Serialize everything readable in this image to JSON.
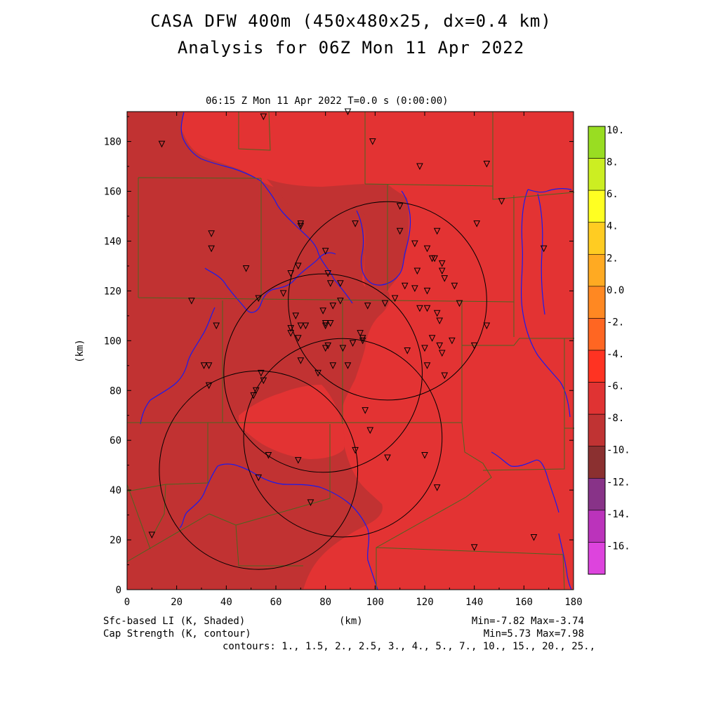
{
  "title_line1": "CASA DFW 400m (450x480x25, dx=0.4 km)",
  "title_line2": "Analysis for 06Z Mon 11 Apr 2022",
  "subtitle": "06:15 Z Mon 11 Apr 2022    T=0.0 s (0:00:00)",
  "x_axis": {
    "label": "(km)",
    "ticks": [
      "0",
      "20",
      "40",
      "60",
      "80",
      "100",
      "120",
      "140",
      "160",
      "180"
    ]
  },
  "y_axis": {
    "label": "(km)",
    "ticks": [
      "0",
      "20",
      "40",
      "60",
      "80",
      "100",
      "120",
      "140",
      "160",
      "180"
    ]
  },
  "colorbar": {
    "labels": [
      "10.",
      "8.",
      "6.",
      "4.",
      "2.",
      "0.0",
      "-2.",
      "-4.",
      "-6.",
      "-8.",
      "-10.",
      "-12.",
      "-14.",
      "-16."
    ],
    "colors": [
      "#99dd22",
      "#ccee22",
      "#ffff22",
      "#ffcc22",
      "#ffaa22",
      "#ff8822",
      "#ff6622",
      "#ff3322",
      "#e03333",
      "#c03333",
      "#8b3030",
      "#883388",
      "#bb33bb",
      "#dd44dd"
    ]
  },
  "field_colors": {
    "main": "#e33333",
    "darker": "#c13232",
    "county_line": "#4a6620",
    "river": "#1a1aee"
  },
  "footer": {
    "left1": "Sfc-based LI (K, Shaded)",
    "left2": "Cap Strength (K, contour)",
    "center": "(km)",
    "right1": "Min=-7.82 Max=-3.74",
    "right2": "Min=5.73 Max=7.98",
    "contours": "contours: 1., 1.5, 2., 2.5, 3., 4., 5., 7., 10., 15., 20., 25.,"
  },
  "radar_rings": [
    {
      "cx_km": 53,
      "cy_km": 48
    },
    {
      "cx_km": 79,
      "cy_km": 87
    },
    {
      "cx_km": 87,
      "cy_km": 61
    },
    {
      "cx_km": 105,
      "cy_km": 116
    }
  ],
  "stations_km": [
    [
      14,
      179
    ],
    [
      55,
      190
    ],
    [
      89,
      192
    ],
    [
      99,
      180
    ],
    [
      118,
      170
    ],
    [
      145,
      171
    ],
    [
      151,
      156
    ],
    [
      168,
      137
    ],
    [
      34,
      143
    ],
    [
      34,
      137
    ],
    [
      48,
      129
    ],
    [
      70,
      147
    ],
    [
      70,
      146
    ],
    [
      80,
      136
    ],
    [
      81,
      127
    ],
    [
      86,
      123
    ],
    [
      82,
      123
    ],
    [
      69,
      130
    ],
    [
      66,
      127
    ],
    [
      92,
      147
    ],
    [
      110,
      154
    ],
    [
      110,
      144
    ],
    [
      116,
      139
    ],
    [
      121,
      137
    ],
    [
      125,
      144
    ],
    [
      123,
      133
    ],
    [
      124,
      133
    ],
    [
      127,
      131
    ],
    [
      127,
      128
    ],
    [
      128,
      125
    ],
    [
      132,
      122
    ],
    [
      134,
      115
    ],
    [
      141,
      147
    ],
    [
      117,
      128
    ],
    [
      121,
      120
    ],
    [
      116,
      121
    ],
    [
      112,
      122
    ],
    [
      118,
      113
    ],
    [
      121,
      113
    ],
    [
      125,
      111
    ],
    [
      126,
      108
    ],
    [
      108,
      117
    ],
    [
      104,
      115
    ],
    [
      26,
      116
    ],
    [
      36,
      106
    ],
    [
      53,
      117
    ],
    [
      63,
      119
    ],
    [
      68,
      110
    ],
    [
      70,
      106
    ],
    [
      66,
      105
    ],
    [
      72,
      106
    ],
    [
      66,
      103
    ],
    [
      69,
      101
    ],
    [
      79,
      112
    ],
    [
      82,
      107
    ],
    [
      80,
      107
    ],
    [
      80,
      106
    ],
    [
      86,
      116
    ],
    [
      83,
      114
    ],
    [
      94,
      103
    ],
    [
      95,
      101
    ],
    [
      95,
      100
    ],
    [
      91,
      99
    ],
    [
      87,
      97
    ],
    [
      81,
      98
    ],
    [
      80,
      97
    ],
    [
      83,
      90
    ],
    [
      97,
      114
    ],
    [
      120,
      97
    ],
    [
      123,
      101
    ],
    [
      126,
      98
    ],
    [
      121,
      90
    ],
    [
      127,
      95
    ],
    [
      128,
      86
    ],
    [
      131,
      100
    ],
    [
      140,
      98
    ],
    [
      145,
      106
    ],
    [
      113,
      96
    ],
    [
      89,
      90
    ],
    [
      77,
      87
    ],
    [
      70,
      92
    ],
    [
      31,
      90
    ],
    [
      33,
      90
    ],
    [
      33,
      82
    ],
    [
      54,
      87
    ],
    [
      55,
      84
    ],
    [
      52,
      80
    ],
    [
      51,
      78
    ],
    [
      57,
      54
    ],
    [
      69,
      52
    ],
    [
      92,
      56
    ],
    [
      96,
      72
    ],
    [
      98,
      64
    ],
    [
      105,
      53
    ],
    [
      120,
      54
    ],
    [
      125,
      41
    ],
    [
      140,
      17
    ],
    [
      164,
      21
    ],
    [
      10,
      22
    ],
    [
      53,
      45
    ],
    [
      74,
      35
    ]
  ]
}
